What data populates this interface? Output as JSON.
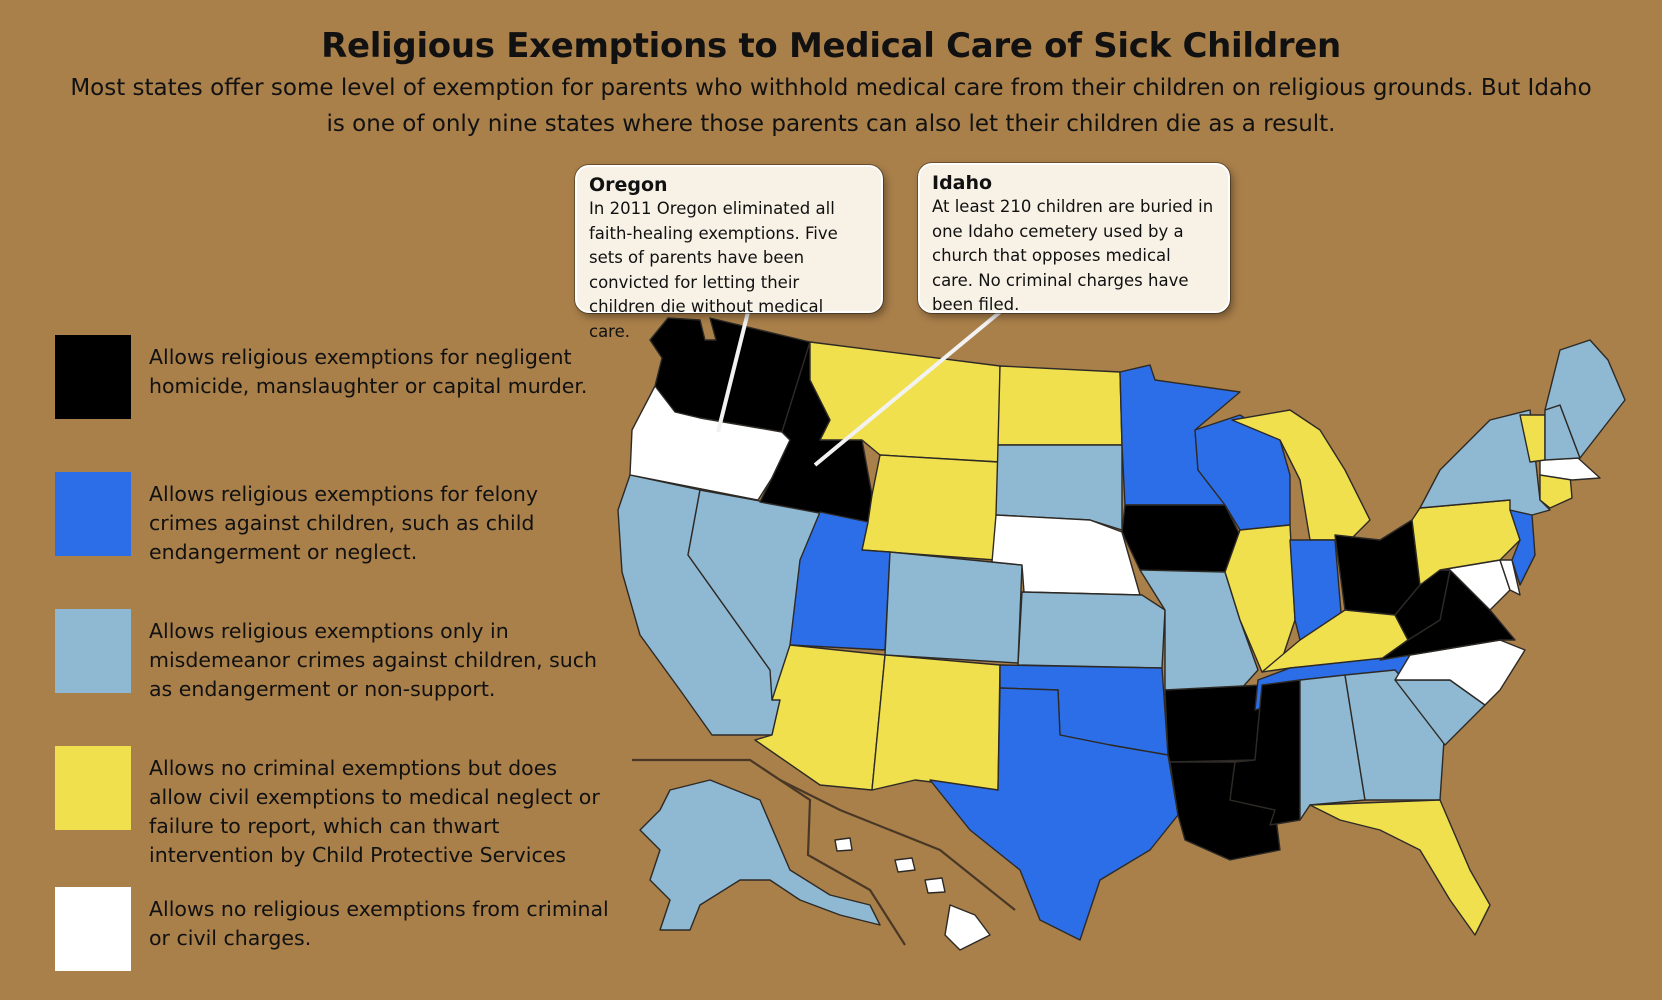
{
  "title": "Religious Exemptions to Medical Care of Sick Children",
  "subtitle": "Most states offer some level of exemption for parents who withhold medical care from their children on religious grounds.  But Idaho is one of only nine states where those parents can also let their children die as a result.",
  "colors": {
    "background": "#a97f4a",
    "black": "#000000",
    "dark_blue": "#2b6ee8",
    "light_blue": "#8fb9d2",
    "yellow": "#f1e04e",
    "white": "#ffffff"
  },
  "legend": [
    {
      "category": "black",
      "color": "#000000",
      "label": "Allows religious exemptions for negligent homicide, manslaughter or capital murder."
    },
    {
      "category": "dark_blue",
      "color": "#2b6ee8",
      "label": "Allows religious exemptions for felony crimes against children, such as child endangerment or neglect."
    },
    {
      "category": "light_blue",
      "color": "#8fb9d2",
      "label": "Allows religious exemptions only in misdemeanor crimes against children, such as endangerment or non-support."
    },
    {
      "category": "yellow",
      "color": "#f1e04e",
      "label": "Allows no criminal exemptions but does allow civil exemptions to medical neglect or failure to report, which can thwart intervention by Child Protective Services"
    },
    {
      "category": "white",
      "color": "#ffffff",
      "label": "Allows no religious exemptions from criminal or civil charges."
    }
  ],
  "callouts": [
    {
      "state": "Oregon",
      "title": "Oregon",
      "body": "In 2011 Oregon eliminated all faith-healing exemptions.  Five sets of parents have been convicted for letting their children die without medical care."
    },
    {
      "state": "Idaho",
      "title": "Idaho",
      "body": "At least 210 children are buried in one Idaho cemetery used by a church that opposes medical care.  No criminal charges have been filed."
    }
  ],
  "states": {
    "WA": "black",
    "ID": "black",
    "IA": "black",
    "OH": "black",
    "WV": "black",
    "VA": "black",
    "AR": "black",
    "LA": "black",
    "MS": "black",
    "MN": "dark_blue",
    "WI": "dark_blue",
    "IN": "dark_blue",
    "UT": "dark_blue",
    "OK": "dark_blue",
    "TX": "dark_blue",
    "TN": "dark_blue",
    "NJ": "dark_blue",
    "CA": "light_blue",
    "NV": "light_blue",
    "CO": "light_blue",
    "SD": "light_blue",
    "KS": "light_blue",
    "MO": "light_blue",
    "AL": "light_blue",
    "GA": "light_blue",
    "SC": "light_blue",
    "NY": "light_blue",
    "ME": "light_blue",
    "NH": "light_blue",
    "AK": "light_blue",
    "MT": "yellow",
    "WY": "yellow",
    "ND": "yellow",
    "AZ": "yellow",
    "NM": "yellow",
    "IL": "yellow",
    "MI": "yellow",
    "KY": "yellow",
    "PA": "yellow",
    "FL": "yellow",
    "VT": "yellow",
    "CT": "yellow",
    "OR": "white",
    "NE": "white",
    "NC": "white",
    "MA": "white",
    "MD": "white",
    "DE": "white",
    "HI": "white"
  }
}
